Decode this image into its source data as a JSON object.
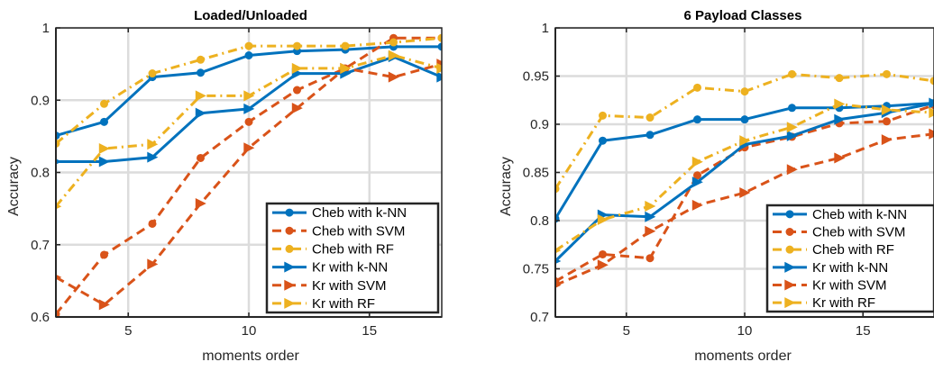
{
  "chart_data": [
    {
      "type": "line",
      "title": "Loaded/Unloaded",
      "xlabel": "moments order",
      "ylabel": "Accuracy",
      "xlim": [
        2,
        18
      ],
      "ylim": [
        0.6,
        1.0
      ],
      "xticks": [
        5,
        10,
        15
      ],
      "yticks": [
        0.6,
        0.7,
        0.8,
        0.9,
        1.0
      ],
      "ytick_labels": [
        "0.6",
        "0.7",
        "0.8",
        "0.9",
        "1"
      ],
      "grid": true,
      "legend_position": "bottom-right",
      "x": [
        2,
        4,
        6,
        8,
        10,
        12,
        14,
        16,
        18
      ],
      "series": [
        {
          "name": "Cheb with k-NN",
          "values": [
            0.851,
            0.87,
            0.932,
            0.938,
            0.962,
            0.968,
            0.97,
            0.974,
            0.974
          ]
        },
        {
          "name": "Cheb with SVM",
          "values": [
            0.604,
            0.686,
            0.729,
            0.82,
            0.87,
            0.914,
            0.944,
            0.986,
            0.986
          ]
        },
        {
          "name": "Cheb with RF",
          "values": [
            0.84,
            0.895,
            0.937,
            0.956,
            0.975,
            0.975,
            0.975,
            0.98,
            0.986
          ]
        },
        {
          "name": "Kr with k-NN",
          "values": [
            0.815,
            0.815,
            0.821,
            0.882,
            0.888,
            0.937,
            0.937,
            0.96,
            0.932
          ]
        },
        {
          "name": "Kr with SVM",
          "values": [
            0.655,
            0.617,
            0.673,
            0.757,
            0.834,
            0.889,
            0.944,
            0.932,
            0.95
          ]
        },
        {
          "name": "Kr with RF",
          "values": [
            0.753,
            0.833,
            0.839,
            0.906,
            0.906,
            0.944,
            0.944,
            0.962,
            0.944
          ]
        }
      ]
    },
    {
      "type": "line",
      "title": "6 Payload Classes",
      "xlabel": "moments order",
      "ylabel": "Accuracy",
      "xlim": [
        2,
        18
      ],
      "ylim": [
        0.7,
        1.0
      ],
      "xticks": [
        5,
        10,
        15
      ],
      "yticks": [
        0.7,
        0.75,
        0.8,
        0.85,
        0.9,
        0.95,
        1.0
      ],
      "ytick_labels": [
        "0.7",
        "0.75",
        "0.8",
        "0.85",
        "0.9",
        "0.95",
        "1"
      ],
      "grid": true,
      "legend_position": "bottom-right",
      "x": [
        2,
        4,
        6,
        8,
        10,
        12,
        14,
        16,
        18
      ],
      "series": [
        {
          "name": "Cheb with k-NN",
          "values": [
            0.802,
            0.883,
            0.889,
            0.905,
            0.905,
            0.917,
            0.917,
            0.919,
            0.922
          ]
        },
        {
          "name": "Cheb with SVM",
          "values": [
            0.737,
            0.765,
            0.761,
            0.847,
            0.876,
            0.887,
            0.901,
            0.903,
            0.92
          ]
        },
        {
          "name": "Cheb with RF",
          "values": [
            0.833,
            0.909,
            0.907,
            0.938,
            0.934,
            0.952,
            0.948,
            0.952,
            0.945
          ]
        },
        {
          "name": "Kr with k-NN",
          "values": [
            0.758,
            0.806,
            0.804,
            0.84,
            0.879,
            0.888,
            0.905,
            0.912,
            0.922
          ]
        },
        {
          "name": "Kr with SVM",
          "values": [
            0.733,
            0.754,
            0.789,
            0.816,
            0.829,
            0.853,
            0.865,
            0.884,
            0.89
          ]
        },
        {
          "name": "Kr with RF",
          "values": [
            0.769,
            0.801,
            0.815,
            0.861,
            0.883,
            0.897,
            0.921,
            0.915,
            0.912
          ]
        }
      ]
    }
  ],
  "style": {
    "colors": [
      "#0072BD",
      "#D95319",
      "#EDB120",
      "#0072BD",
      "#D95319",
      "#EDB120"
    ],
    "markers": [
      "circle",
      "circle",
      "circle",
      "triangle-right",
      "triangle-right",
      "triangle-right"
    ],
    "dashes": [
      "solid",
      "dashed",
      "dashdot",
      "solid",
      "dashed",
      "dashdot"
    ]
  }
}
